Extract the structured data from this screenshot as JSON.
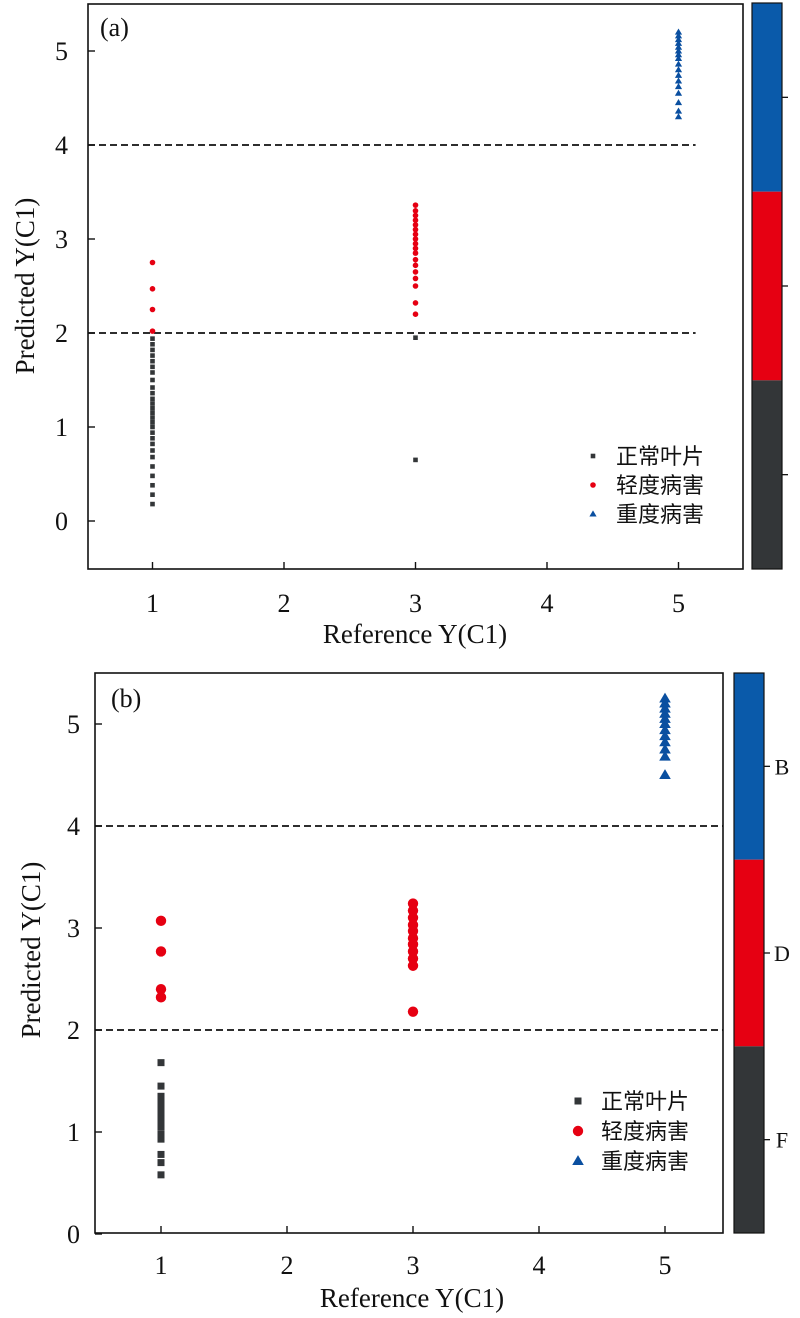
{
  "chart_data": [
    {
      "type": "scatter",
      "panel_label": "(a)",
      "xlabel": "Reference Y(C1)",
      "ylabel": "Predicted Y(C1)",
      "xlim": [
        0.5,
        5.5
      ],
      "ylim": [
        -0.5,
        5.5
      ],
      "x_ticks": [
        "1",
        "2",
        "3",
        "4",
        "5"
      ],
      "y_ticks": [
        "0",
        "1",
        "2",
        "3",
        "4",
        "5"
      ],
      "thresholds": [
        2,
        4
      ],
      "threshold_x_end": 5.13,
      "legend_position": "bottom-right",
      "colorbar_labels": [
        "",
        "",
        ""
      ],
      "series": [
        {
          "name": "正常叶片",
          "marker": "square",
          "color": "#333638",
          "points": [
            [
              1,
              0.18
            ],
            [
              1,
              0.28
            ],
            [
              1,
              0.38
            ],
            [
              1,
              0.48
            ],
            [
              1,
              0.58
            ],
            [
              1,
              0.68
            ],
            [
              1,
              0.75
            ],
            [
              1,
              0.82
            ],
            [
              1,
              0.88
            ],
            [
              1,
              0.94
            ],
            [
              1,
              1.0
            ],
            [
              1,
              1.05
            ],
            [
              1,
              1.1
            ],
            [
              1,
              1.15
            ],
            [
              1,
              1.2
            ],
            [
              1,
              1.25
            ],
            [
              1,
              1.3
            ],
            [
              1,
              1.36
            ],
            [
              1,
              1.42
            ],
            [
              1,
              1.5
            ],
            [
              1,
              1.58
            ],
            [
              1,
              1.64
            ],
            [
              1,
              1.7
            ],
            [
              1,
              1.76
            ],
            [
              1,
              1.82
            ],
            [
              1,
              1.88
            ],
            [
              1,
              1.94
            ],
            [
              3,
              0.65
            ],
            [
              3,
              1.95
            ]
          ]
        },
        {
          "name": "轻度病害",
          "marker": "circle",
          "color": "#e60012",
          "points": [
            [
              1,
              2.02
            ],
            [
              1,
              2.25
            ],
            [
              1,
              2.47
            ],
            [
              1,
              2.75
            ],
            [
              3,
              2.2
            ],
            [
              3,
              2.32
            ],
            [
              3,
              2.5
            ],
            [
              3,
              2.58
            ],
            [
              3,
              2.65
            ],
            [
              3,
              2.72
            ],
            [
              3,
              2.78
            ],
            [
              3,
              2.85
            ],
            [
              3,
              2.9
            ],
            [
              3,
              2.95
            ],
            [
              3,
              3.0
            ],
            [
              3,
              3.05
            ],
            [
              3,
              3.1
            ],
            [
              3,
              3.15
            ],
            [
              3,
              3.2
            ],
            [
              3,
              3.25
            ],
            [
              3,
              3.3
            ],
            [
              3,
              3.36
            ]
          ]
        },
        {
          "name": "重度病害",
          "marker": "triangle",
          "color": "#0a4fa0",
          "points": [
            [
              5,
              4.3
            ],
            [
              5,
              4.36
            ],
            [
              5,
              4.45
            ],
            [
              5,
              4.55
            ],
            [
              5,
              4.62
            ],
            [
              5,
              4.68
            ],
            [
              5,
              4.74
            ],
            [
              5,
              4.8
            ],
            [
              5,
              4.86
            ],
            [
              5,
              4.92
            ],
            [
              5,
              4.96
            ],
            [
              5,
              5.0
            ],
            [
              5,
              5.04
            ],
            [
              5,
              5.08
            ],
            [
              5,
              5.12
            ],
            [
              5,
              5.16
            ],
            [
              5,
              5.2
            ]
          ]
        }
      ]
    },
    {
      "type": "scatter",
      "panel_label": "(b)",
      "xlabel": "Reference Y(C1)",
      "ylabel": "Predicted Y(C1)",
      "xlim": [
        0.5,
        5.5
      ],
      "ylim": [
        0,
        5.5
      ],
      "x_ticks": [
        "1",
        "2",
        "3",
        "4",
        "5"
      ],
      "y_ticks": [
        "0",
        "1",
        "2",
        "3",
        "4",
        "5"
      ],
      "thresholds": [
        2,
        4
      ],
      "threshold_x_end": 5.5,
      "legend_position": "bottom-right",
      "colorbar_labels": [
        "B",
        "D",
        "F"
      ],
      "series": [
        {
          "name": "正常叶片",
          "marker": "square",
          "color": "#333638",
          "points": [
            [
              1,
              0.58
            ],
            [
              1,
              0.7
            ],
            [
              1,
              0.78
            ],
            [
              1,
              0.93
            ],
            [
              1,
              0.98
            ],
            [
              1,
              1.05
            ],
            [
              1,
              1.1
            ],
            [
              1,
              1.15
            ],
            [
              1,
              1.2
            ],
            [
              1,
              1.25
            ],
            [
              1,
              1.3
            ],
            [
              1,
              1.35
            ],
            [
              1,
              1.45
            ],
            [
              1,
              1.68
            ]
          ]
        },
        {
          "name": "轻度病害",
          "marker": "circle",
          "color": "#e60012",
          "points": [
            [
              1,
              2.32
            ],
            [
              1,
              2.4
            ],
            [
              1,
              2.77
            ],
            [
              1,
              3.07
            ],
            [
              3,
              2.18
            ],
            [
              3,
              2.63
            ],
            [
              3,
              2.7
            ],
            [
              3,
              2.77
            ],
            [
              3,
              2.84
            ],
            [
              3,
              2.9
            ],
            [
              3,
              2.97
            ],
            [
              3,
              3.03
            ],
            [
              3,
              3.1
            ],
            [
              3,
              3.17
            ],
            [
              3,
              3.24
            ]
          ]
        },
        {
          "name": "重度病害",
          "marker": "triangle",
          "color": "#0a4fa0",
          "points": [
            [
              5,
              4.5
            ],
            [
              5,
              4.68
            ],
            [
              5,
              4.75
            ],
            [
              5,
              4.82
            ],
            [
              5,
              4.88
            ],
            [
              5,
              4.94
            ],
            [
              5,
              5.0
            ],
            [
              5,
              5.05
            ],
            [
              5,
              5.1
            ],
            [
              5,
              5.15
            ],
            [
              5,
              5.2
            ],
            [
              5,
              5.25
            ]
          ]
        }
      ]
    }
  ]
}
